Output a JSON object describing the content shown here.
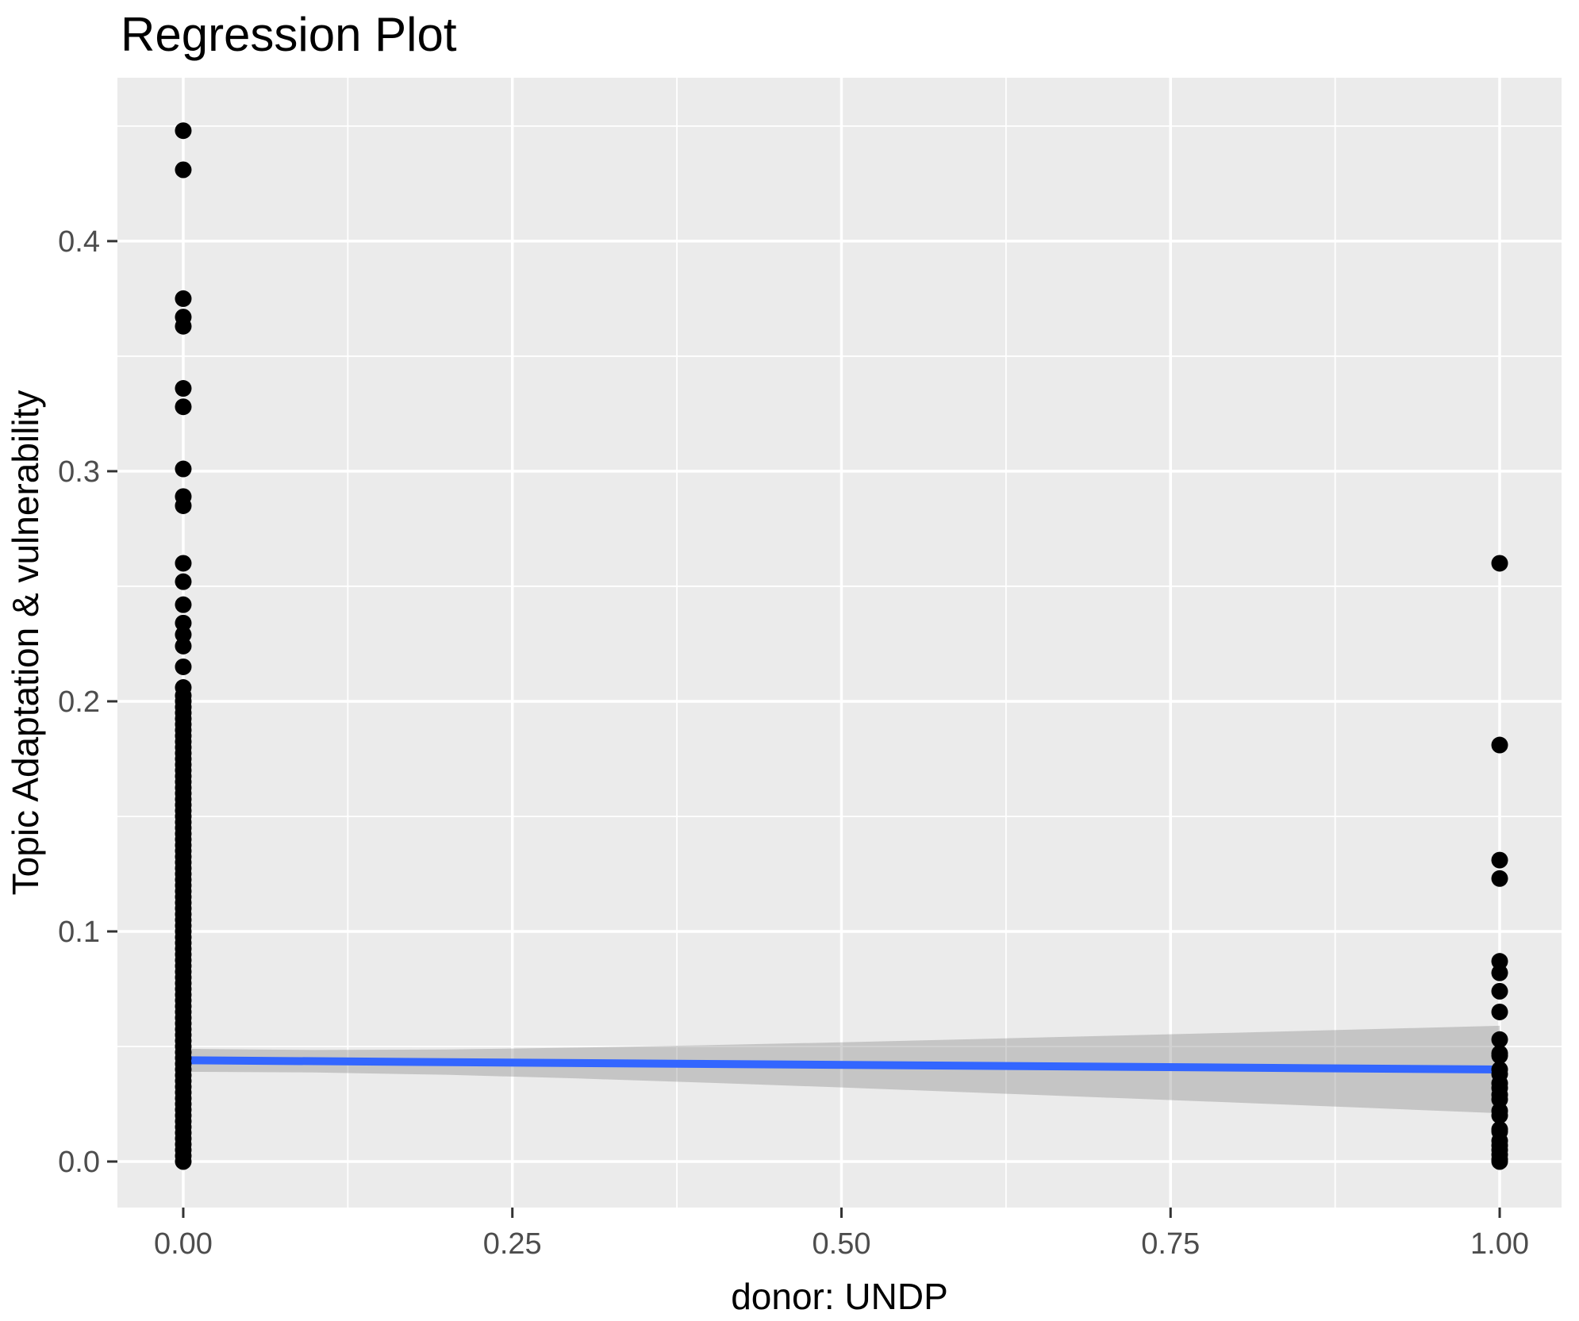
{
  "title": "Regression Plot",
  "colors": {
    "outer_background": "#FFFFFF",
    "panel_background": "#EBEBEB",
    "grid_line": "#FFFFFF",
    "point": "#000000",
    "smooth_line": "#3366FF",
    "ci_band_fill": "rgba(125,125,125,0.35)",
    "tick_mark": "#333333",
    "tick_text": "#4D4D4D",
    "title_text": "#000000"
  },
  "chart_data": {
    "type": "scatter",
    "title": "Regression Plot",
    "xlabel": "donor: UNDP",
    "ylabel": "Topic Adaptation & vulnerability",
    "legend": "none",
    "grid": "major+minor",
    "xlim": [
      -0.05,
      1.047
    ],
    "ylim": [
      -0.02,
      0.471
    ],
    "x_ticks": [
      0,
      0.25,
      0.5,
      0.75,
      1
    ],
    "x_tick_labels": [
      "0.00",
      "0.25",
      "0.50",
      "0.75",
      "1.00"
    ],
    "x_minor_ticks": [
      0.125,
      0.375,
      0.625,
      0.875
    ],
    "y_ticks": [
      0,
      0.1,
      0.2,
      0.3,
      0.4
    ],
    "y_tick_labels": [
      "0.0",
      "0.1",
      "0.2",
      "0.3",
      "0.4"
    ],
    "y_minor_ticks": [
      0.05,
      0.15,
      0.25,
      0.35,
      0.45
    ],
    "series": [
      {
        "name": "donor UNDP = 0",
        "x": 0,
        "y": [
          0.0,
          0.0025,
          0.005,
          0.0075,
          0.01,
          0.0125,
          0.015,
          0.0175,
          0.02,
          0.0225,
          0.025,
          0.0275,
          0.03,
          0.0325,
          0.035,
          0.0375,
          0.04,
          0.0425,
          0.045,
          0.0475,
          0.05,
          0.0525,
          0.055,
          0.0575,
          0.06,
          0.0625,
          0.065,
          0.0675,
          0.07,
          0.0725,
          0.075,
          0.0775,
          0.08,
          0.0825,
          0.085,
          0.0875,
          0.09,
          0.0925,
          0.095,
          0.0975,
          0.1,
          0.1025,
          0.105,
          0.1075,
          0.11,
          0.1125,
          0.115,
          0.1175,
          0.12,
          0.1225,
          0.125,
          0.1275,
          0.13,
          0.1325,
          0.135,
          0.1375,
          0.14,
          0.1425,
          0.145,
          0.1475,
          0.15,
          0.1525,
          0.155,
          0.1575,
          0.16,
          0.1625,
          0.165,
          0.1675,
          0.17,
          0.1725,
          0.175,
          0.1775,
          0.18,
          0.1825,
          0.185,
          0.1875,
          0.19,
          0.1925,
          0.195,
          0.1975,
          0.2,
          0.2025,
          0.206,
          0.215,
          0.224,
          0.229,
          0.234,
          0.242,
          0.252,
          0.26,
          0.285,
          0.289,
          0.301,
          0.328,
          0.336,
          0.363,
          0.367,
          0.375,
          0.431,
          0.448
        ]
      },
      {
        "name": "donor UNDP = 1",
        "x": 1,
        "y": [
          0.0,
          0.001,
          0.003,
          0.005,
          0.007,
          0.009,
          0.013,
          0.014,
          0.02,
          0.022,
          0.027,
          0.029,
          0.032,
          0.034,
          0.038,
          0.04,
          0.046,
          0.047,
          0.053,
          0.065,
          0.074,
          0.082,
          0.087,
          0.123,
          0.131,
          0.181,
          0.26
        ]
      }
    ],
    "regression_line": {
      "x": [
        0,
        1
      ],
      "y": [
        0.044,
        0.04
      ]
    },
    "ci_band": {
      "x": [
        0,
        0.1,
        0.2,
        0.3,
        0.4,
        0.5,
        0.6,
        0.7,
        0.8,
        0.9,
        1
      ],
      "lower": [
        0.039,
        0.0387,
        0.0377,
        0.0361,
        0.0342,
        0.0322,
        0.03,
        0.0278,
        0.0256,
        0.0233,
        0.021
      ],
      "upper": [
        0.049,
        0.0485,
        0.0487,
        0.0495,
        0.0506,
        0.0518,
        0.0532,
        0.0546,
        0.056,
        0.0575,
        0.059
      ]
    }
  }
}
